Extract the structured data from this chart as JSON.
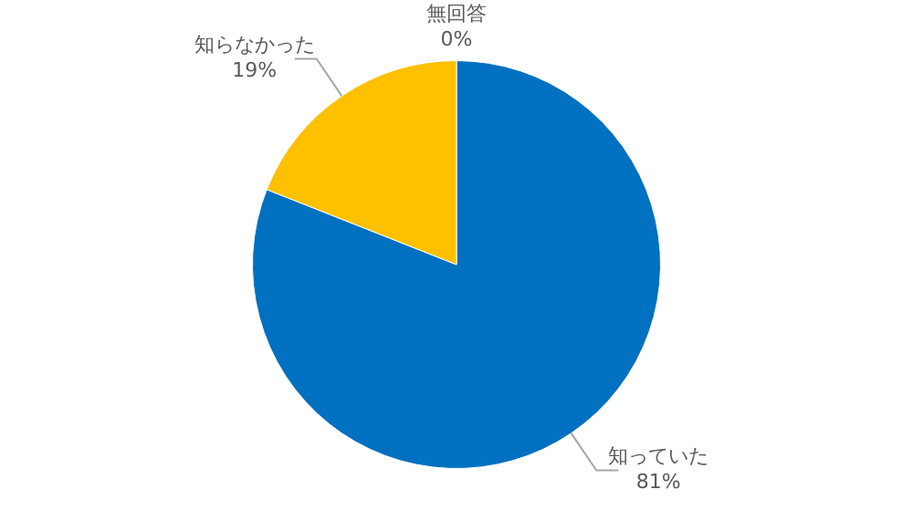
{
  "chart_data": {
    "type": "pie",
    "categories": [
      "知っていた",
      "知らなかった",
      "無回答"
    ],
    "values": [
      81,
      19,
      0
    ],
    "colors": [
      "#0070c0",
      "#ffc000",
      "#e8452b"
    ],
    "value_labels": [
      "81%",
      "19%",
      "0%"
    ],
    "legend": false
  }
}
